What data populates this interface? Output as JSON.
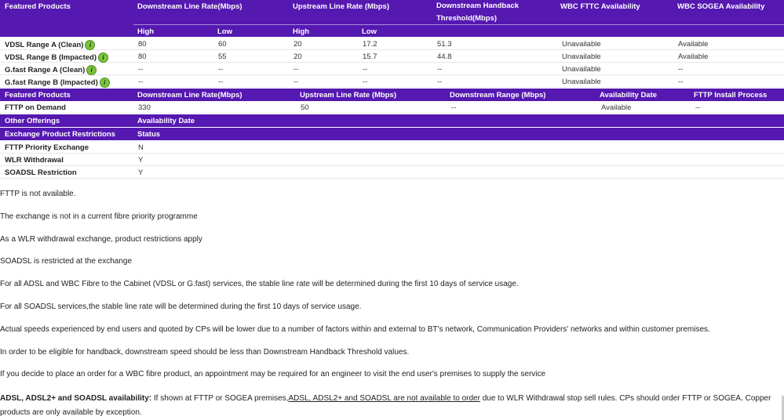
{
  "table1": {
    "headers": [
      "Featured Products",
      "Downstream Line Rate(Mbps)",
      "Upstream Line Rate (Mbps)",
      "Downstream Handback Threshold(Mbps)",
      "WBC FTTC Availability",
      "WBC SOGEA Availability"
    ],
    "subheaders": [
      "High",
      "Low",
      "High",
      "Low"
    ],
    "rows": [
      {
        "name": "VDSL Range A (Clean)",
        "cells": [
          "80",
          "60",
          "20",
          "17.2",
          "51.3",
          "Unavailable",
          "Available"
        ]
      },
      {
        "name": "VDSL Range B (Impacted)",
        "cells": [
          "80",
          "55",
          "20",
          "15.7",
          "44.8",
          "Unavailable",
          "Available"
        ]
      },
      {
        "name": "G.fast Range A (Clean)",
        "cells": [
          "--",
          "--",
          "--",
          "--",
          "--",
          "Unavailable",
          "--"
        ]
      },
      {
        "name": "G.fast Range B (Impacted)",
        "cells": [
          "--",
          "--",
          "--",
          "--",
          "--",
          "Unavailable",
          "--"
        ]
      }
    ],
    "info_icon": "info-icon",
    "header_color": "#5518b1"
  },
  "table2": {
    "headers": [
      "Featured Products",
      "Downstream Line Rate(Mbps)",
      "Upstream Line Rate (Mbps)",
      "Downstream Range (Mbps)",
      "Availability Date",
      "FTTP Install Process"
    ],
    "row": [
      "FTTP on Demand",
      "330",
      "50",
      "--",
      "Available",
      "--"
    ]
  },
  "other": {
    "headers": [
      "Other Offerings",
      "Availability Date"
    ]
  },
  "restrictions": {
    "headers": [
      "Exchange Product Restrictions",
      "Status"
    ],
    "rows": [
      [
        "FTTP Priority Exchange",
        "N"
      ],
      [
        "WLR Withdrawal",
        "Y"
      ],
      [
        "SOADSL Restriction",
        "Y"
      ]
    ]
  },
  "notes": [
    "FTTP is not available.",
    "The exchange is not in a current fibre priority programme",
    "As a WLR withdrawal exchange, product restrictions apply",
    "SOADSL is restricted at the exchange",
    "For all ADSL and WBC Fibre to the Cabinet (VDSL or G.fast) services, the stable line rate will be determined during the first 10 days of service usage.",
    "For all SOADSL services,the stable line rate will be determined during the first 10 days of service usage.",
    "Actual speeds experienced by end users and quoted by CPs will be lower due to a number of factors within and external to BT's network, Communication Providers' networks and within customer premises.",
    "In order to be eligible for handback, downstream speed should be less than Downstream Handback Threshold values.",
    "If you decide to place an order for a WBC fibre product, an appointment may be required for an engineer to visit the end user's premises to supply the service"
  ],
  "adsl_note": {
    "bold": "ADSL, ADSL2+ and SOADSL availability:",
    "pre": " If shown at FTTP or SOGEA premises,",
    "underlined": "ADSL, ADSL2+ and SOADSL are not available to order",
    "post": " due to WLR Withdrawal stop sell rules. CPs should order FTTP or SOGEA. Copper",
    "line2": "products are only available by exception."
  }
}
